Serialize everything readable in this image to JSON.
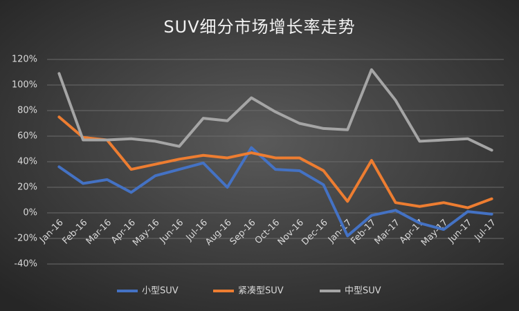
{
  "chart_data": {
    "type": "line",
    "title": "SUV细分市场增长率走势",
    "categories": [
      "Jan-16",
      "Feb-16",
      "Mar-16",
      "Apr-16",
      "May-16",
      "Jun-16",
      "Jul-16",
      "Aug-16",
      "Sep-16",
      "Oct-16",
      "Nov-16",
      "Dec-16",
      "Jan-17",
      "Feb-17",
      "Mar-17",
      "Apr-17",
      "May-17",
      "Jun-17",
      "Jul-17"
    ],
    "series": [
      {
        "name": "小型SUV",
        "color": "#4472c4",
        "values": [
          36,
          23,
          26,
          16,
          29,
          34,
          39,
          20,
          51,
          34,
          33,
          22,
          -18,
          -2,
          2,
          -8,
          -13,
          1,
          -1
        ]
      },
      {
        "name": "紧凑型SUV",
        "color": "#ed7d31",
        "values": [
          75,
          59,
          57,
          34,
          38,
          42,
          45,
          43,
          47,
          43,
          43,
          33,
          9,
          41,
          8,
          5,
          8,
          4,
          11
        ]
      },
      {
        "name": "中型SUV",
        "color": "#a5a5a5",
        "values": [
          109,
          57,
          57,
          58,
          56,
          52,
          74,
          72,
          90,
          79,
          70,
          66,
          65,
          112,
          88,
          56,
          57,
          58,
          49
        ]
      }
    ],
    "ylim": [
      -40,
      120
    ],
    "yticks": [
      {
        "value": -40,
        "label": "-40%"
      },
      {
        "value": -20,
        "label": "-20%"
      },
      {
        "value": 0,
        "label": "0%"
      },
      {
        "value": 20,
        "label": "20%"
      },
      {
        "value": 40,
        "label": "40%"
      },
      {
        "value": 60,
        "label": "60%"
      },
      {
        "value": 80,
        "label": "80%"
      },
      {
        "value": 100,
        "label": "100%"
      },
      {
        "value": 120,
        "label": "120%"
      }
    ],
    "grid": true,
    "legend": "bottom"
  }
}
